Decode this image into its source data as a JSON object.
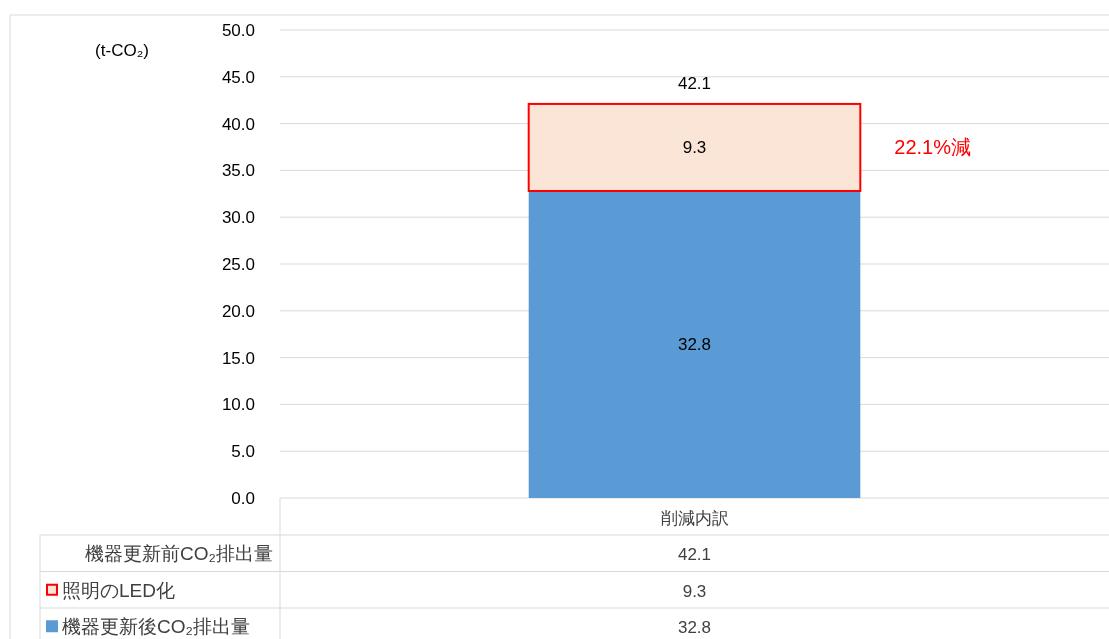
{
  "chart_data": {
    "type": "bar",
    "stacked": true,
    "ylabel": "(t-CO₂)",
    "categories": [
      "削減内訳"
    ],
    "series": [
      {
        "name": "機器更新後CO₂排出量",
        "color": "#5b9bd5",
        "values": [
          32.8
        ],
        "value_labels": [
          "32.8"
        ]
      },
      {
        "name": "照明のLED化",
        "color": "#fbe5d6",
        "values": [
          9.3
        ],
        "value_labels": [
          "9.3"
        ]
      }
    ],
    "totals": [
      "42.1"
    ],
    "annotations": [
      "機器更新前CO₂排出量",
      "22.1%減"
    ],
    "ylim": [
      0,
      50
    ],
    "yticks": [
      {
        "value": 0,
        "label": "0.0"
      },
      {
        "value": 5,
        "label": "5.0"
      },
      {
        "value": 10,
        "label": "10.0"
      },
      {
        "value": 15,
        "label": "15.0"
      },
      {
        "value": 20,
        "label": "20.0"
      },
      {
        "value": 25,
        "label": "25.0"
      },
      {
        "value": 30,
        "label": "30.0"
      },
      {
        "value": 35,
        "label": "35.0"
      },
      {
        "value": 40,
        "label": "40.0"
      },
      {
        "value": 45,
        "label": "45.0"
      },
      {
        "value": 50,
        "label": "50.0"
      }
    ],
    "grid": "y",
    "legend": "bottom"
  }
}
